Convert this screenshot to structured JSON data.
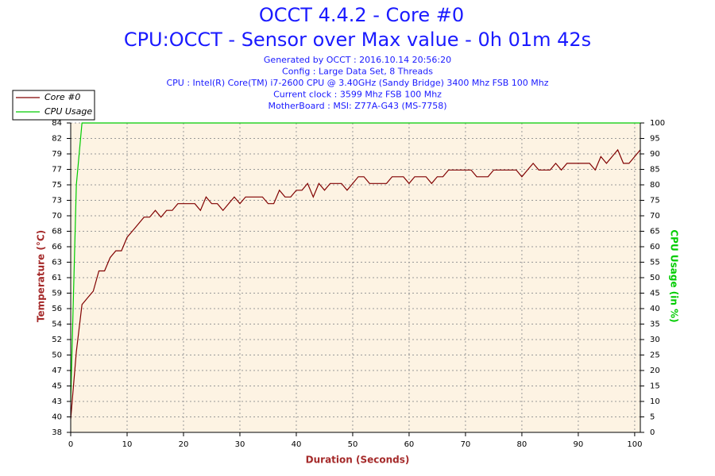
{
  "chart_data": {
    "type": "line",
    "title": "OCCT 4.4.2 - Core #0",
    "subtitle": "CPU:OCCT - Sensor over Max value - 0h 01m 42s",
    "info": [
      "Generated by OCCT : 2016.10.14 20:56:20",
      "Config : Large Data Set, 8 Threads",
      "CPU : Intel(R) Core(TM) i7-2600 CPU @ 3.40GHz (Sandy Bridge) 3400 Mhz FSB 100 Mhz",
      "Current clock : 3599 Mhz FSB 100 Mhz",
      "MotherBoard : MSI: Z77A-G43 (MS-7758)"
    ],
    "x_label": "Duration (Seconds)",
    "y_label": "Temperature (°C)",
    "y2_label": "CPU Usage (in %)",
    "x": [
      0,
      1,
      2,
      3,
      4,
      5,
      6,
      7,
      8,
      9,
      10,
      11,
      12,
      13,
      14,
      15,
      16,
      17,
      18,
      19,
      20,
      21,
      22,
      23,
      24,
      25,
      26,
      27,
      28,
      29,
      30,
      31,
      32,
      33,
      34,
      35,
      36,
      37,
      38,
      39,
      40,
      41,
      42,
      43,
      44,
      45,
      46,
      47,
      48,
      49,
      50,
      51,
      52,
      53,
      54,
      55,
      56,
      57,
      58,
      59,
      60,
      61,
      62,
      63,
      64,
      65,
      66,
      67,
      68,
      69,
      70,
      71,
      72,
      73,
      74,
      75,
      76,
      77,
      78,
      79,
      80,
      81,
      82,
      83,
      84,
      85,
      86,
      87,
      88,
      89,
      90,
      91,
      92,
      93,
      94,
      95,
      96,
      97,
      98,
      99,
      100,
      101
    ],
    "series": [
      {
        "name": "Core #0",
        "color": "#800000",
        "axis": "y",
        "values": [
          40,
          50,
          57,
          58,
          59,
          62,
          62,
          64,
          65,
          65,
          67,
          68,
          69,
          70,
          70,
          71,
          70,
          71,
          71,
          72,
          72,
          72,
          72,
          71,
          73,
          72,
          72,
          71,
          72,
          73,
          72,
          73,
          73,
          73,
          73,
          72,
          72,
          74,
          73,
          73,
          74,
          74,
          75,
          73,
          75,
          74,
          75,
          75,
          75,
          74,
          75,
          76,
          76,
          75,
          75,
          75,
          75,
          76,
          76,
          76,
          75,
          76,
          76,
          76,
          75,
          76,
          76,
          77,
          77,
          77,
          77,
          77,
          76,
          76,
          76,
          77,
          77,
          77,
          77,
          77,
          76,
          77,
          78,
          77,
          77,
          77,
          78,
          77,
          78,
          78,
          78,
          78,
          78,
          77,
          79,
          78,
          79,
          80,
          78,
          78,
          79,
          80
        ]
      },
      {
        "name": "CPU Usage",
        "color": "#00cc00",
        "axis": "y2",
        "values": [
          10,
          80,
          100,
          100,
          100,
          100,
          100,
          100,
          100,
          100,
          100,
          100,
          100,
          100,
          100,
          100,
          100,
          100,
          100,
          100,
          100,
          100,
          100,
          100,
          100,
          100,
          100,
          100,
          100,
          100,
          100,
          100,
          100,
          100,
          100,
          100,
          100,
          100,
          100,
          100,
          100,
          100,
          100,
          100,
          100,
          100,
          100,
          100,
          100,
          100,
          100,
          100,
          100,
          100,
          100,
          100,
          100,
          100,
          100,
          100,
          100,
          100,
          100,
          100,
          100,
          100,
          100,
          100,
          100,
          100,
          100,
          100,
          100,
          100,
          100,
          100,
          100,
          100,
          100,
          100,
          100,
          100,
          100,
          100,
          100,
          100,
          100,
          100,
          100,
          100,
          100,
          100,
          100,
          100,
          100,
          100,
          100,
          100,
          100,
          100,
          100,
          100
        ]
      }
    ],
    "xlim": [
      0,
      101
    ],
    "xticks": [
      0,
      10,
      20,
      30,
      40,
      50,
      60,
      70,
      80,
      90,
      100
    ],
    "ylim": [
      38,
      84
    ],
    "yticks": [
      38,
      {
        "value": 40.3,
        "label": "40"
      },
      {
        "value": 42.6,
        "label": "43"
      },
      {
        "value": 44.9,
        "label": "45"
      },
      {
        "value": 47.2,
        "label": "47"
      },
      {
        "value": 49.5,
        "label": "50"
      },
      {
        "value": 51.8,
        "label": "52"
      },
      {
        "value": 54.1,
        "label": "54"
      },
      {
        "value": 56.4,
        "label": "56"
      },
      {
        "value": 58.7,
        "label": "59"
      },
      61,
      {
        "value": 63.3,
        "label": "63"
      },
      {
        "value": 65.6,
        "label": "66"
      },
      {
        "value": 67.9,
        "label": "68"
      },
      {
        "value": 70.2,
        "label": "70"
      },
      {
        "value": 72.5,
        "label": "73"
      },
      {
        "value": 74.8,
        "label": "75"
      },
      {
        "value": 77.1,
        "label": "77"
      },
      {
        "value": 79.4,
        "label": "79"
      },
      {
        "value": 81.7,
        "label": "82"
      },
      84
    ],
    "y2lim": [
      0,
      100
    ],
    "y2ticks": [
      0,
      5,
      10,
      15,
      20,
      25,
      30,
      35,
      40,
      45,
      50,
      55,
      60,
      65,
      70,
      75,
      80,
      85,
      90,
      95,
      100
    ],
    "grid": true,
    "legend": "top-left"
  }
}
